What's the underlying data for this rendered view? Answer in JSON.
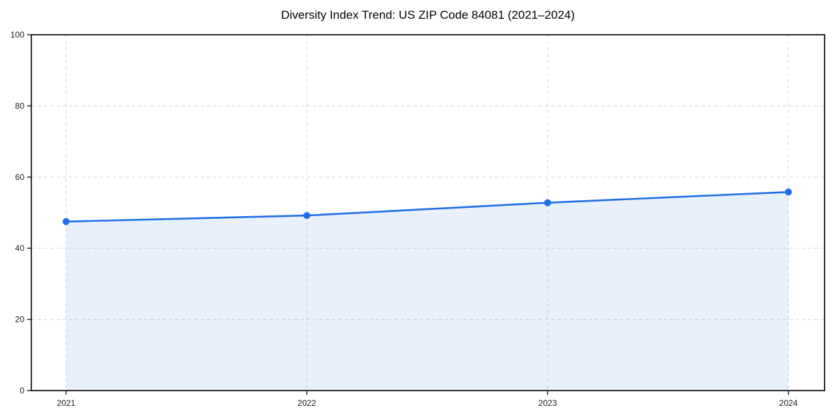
{
  "chart_data": {
    "type": "area",
    "title": "Diversity Index Trend: US ZIP Code 84081 (2021–2024)",
    "x": [
      2021,
      2022,
      2023,
      2024
    ],
    "xtick_labels": [
      "2021",
      "2022",
      "2023",
      "2024"
    ],
    "series": [
      {
        "name": "Diversity Index",
        "values": [
          47.5,
          49.2,
          52.8,
          55.8
        ]
      }
    ],
    "xlabel": "",
    "ylabel": "",
    "ylim": [
      0,
      100
    ],
    "yticks": [
      0,
      20,
      40,
      60,
      80,
      100
    ],
    "ytick_labels": [
      "0",
      "20",
      "40",
      "60",
      "80",
      "100"
    ],
    "grid": "dashed, horizontal and vertical",
    "legend": "none",
    "marker": "circle",
    "colors": {
      "line": "#1e6fe6",
      "fill_opacity": 0.1,
      "gridline": "#dedede",
      "spine": "#1a1a1a",
      "tick_label": "#1a1a1a",
      "title": "#000000",
      "background": "#ffffff"
    }
  }
}
